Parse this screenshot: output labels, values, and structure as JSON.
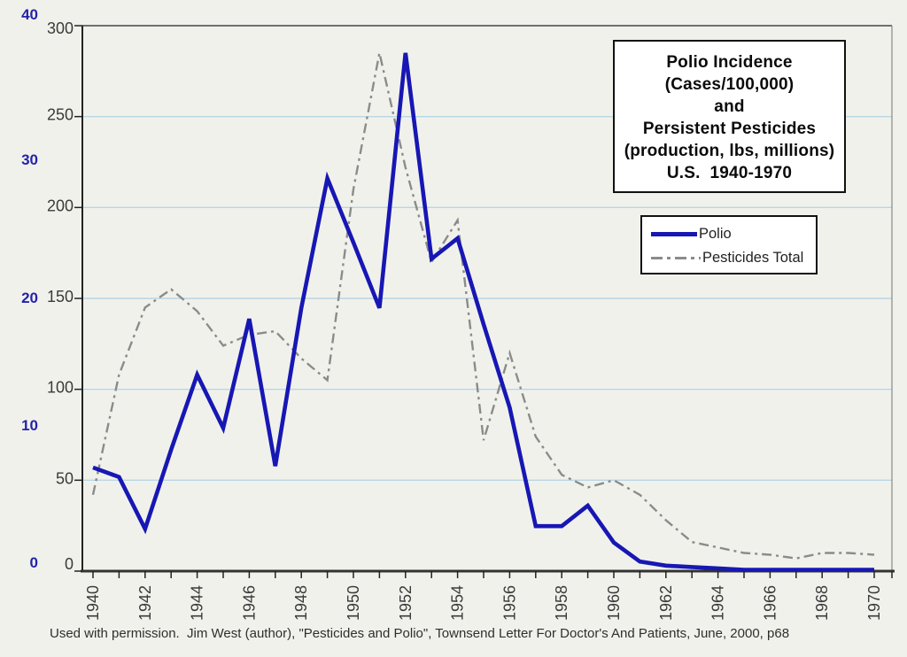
{
  "title_box": {
    "lines": [
      "Polio Incidence",
      "(Cases/100,000)",
      "and",
      "Persistent Pesticides",
      "(production, lbs, millions)",
      "U.S.  1940-1970"
    ]
  },
  "legend": {
    "position": "upper right",
    "items": [
      {
        "label": "Polio",
        "series": "polio",
        "line_style": "solid"
      },
      {
        "label": "Pesticides Total",
        "series": "pesticides",
        "line_style": "dash-dot"
      }
    ]
  },
  "caption": "Used with permission.  Jim West (author), \"Pesticides and Polio\", Townsend Letter For Doctor's And Patients, June, 2000, p68",
  "colors": {
    "background": "#f1f1ec",
    "grid": "#b9d6e4",
    "polio_line": "#1717b4",
    "pesticides_line": "#8b8b8b",
    "polio_axis_text": "#2323a8",
    "pesticides_axis_text": "#3a3a3a",
    "axis": "#222222",
    "box_background": "#ffffff"
  },
  "chart_data": {
    "type": "line",
    "title": "Polio Incidence (Cases/100,000) and Persistent Pesticides (production, lbs, millions) U.S. 1940-1970",
    "grid": true,
    "legend_position": "upper right",
    "x": [
      1940,
      1941,
      1942,
      1943,
      1944,
      1945,
      1946,
      1947,
      1948,
      1949,
      1950,
      1951,
      1952,
      1953,
      1954,
      1955,
      1956,
      1957,
      1958,
      1959,
      1960,
      1961,
      1962,
      1963,
      1964,
      1965,
      1966,
      1967,
      1968,
      1969,
      1970
    ],
    "x_tick_labels": [
      "1940",
      "1942",
      "1944",
      "1946",
      "1948",
      "1950",
      "1952",
      "1954",
      "1956",
      "1958",
      "1960",
      "1962",
      "1964",
      "1966",
      "1968",
      "1970"
    ],
    "axes": {
      "polio": {
        "label": "Polio incidence, cases/100,000",
        "side": "left-outer",
        "range": [
          0,
          40
        ],
        "ticks": [
          40,
          30,
          20,
          10,
          0
        ]
      },
      "pesticides": {
        "label": "Persistent pesticides production, lbs, millions",
        "side": "left-inner",
        "range": [
          0,
          300
        ],
        "ticks": [
          300,
          250,
          200,
          150,
          100,
          50,
          0
        ]
      }
    },
    "series": [
      {
        "name": "Polio",
        "axis": "polio",
        "unit": "cases per 100,000",
        "style": "solid",
        "values": [
          7.6,
          6.9,
          3.1,
          8.9,
          14.4,
          10.5,
          18.5,
          7.7,
          19.3,
          28.8,
          24.1,
          19.3,
          38.0,
          22.9,
          24.4,
          18.1,
          12.0,
          3.3,
          3.3,
          4.8,
          2.1,
          0.7,
          0.4,
          0.3,
          0.2,
          0.1,
          0.1,
          0.1,
          0.1,
          0.1,
          0.1
        ]
      },
      {
        "name": "Pesticides Total",
        "axis": "pesticides",
        "unit": "production, lbs, millions",
        "style": "dash-dot",
        "values": [
          42,
          108,
          145,
          155,
          143,
          124,
          130,
          132,
          117,
          105,
          210,
          285,
          222,
          170,
          193,
          72,
          120,
          74,
          53,
          46,
          50,
          42,
          28,
          16,
          13,
          10,
          9,
          7,
          10,
          10,
          9
        ]
      }
    ]
  }
}
